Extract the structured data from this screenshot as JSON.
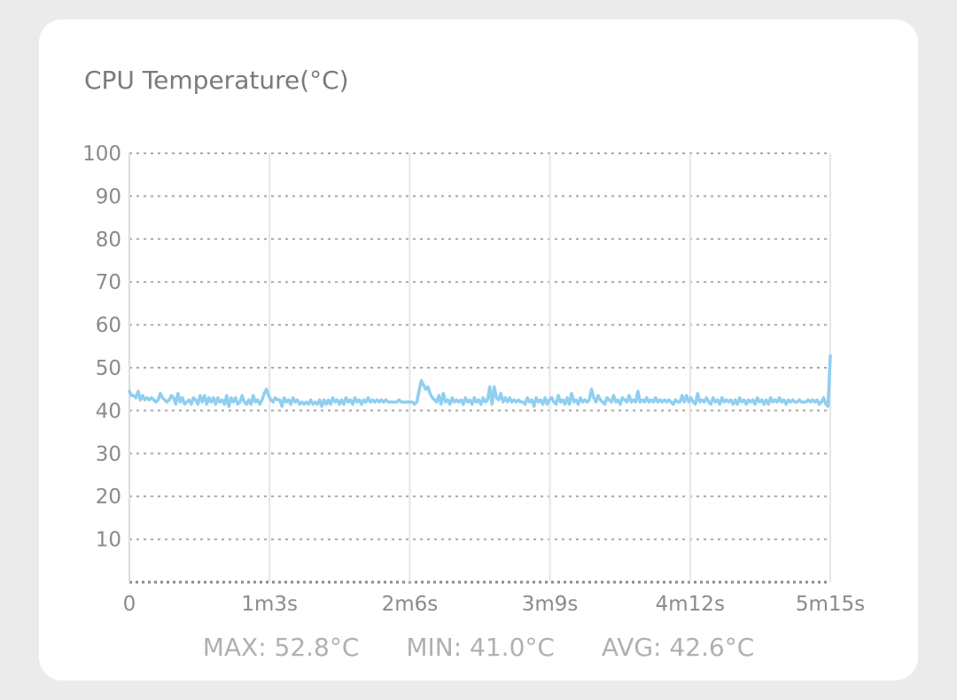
{
  "chart_data": {
    "type": "line",
    "title": "CPU Temperature(°C)",
    "xlabel": "",
    "ylabel": "",
    "ylim": [
      0,
      100
    ],
    "xlim": [
      0,
      315
    ],
    "y_ticks": [
      100,
      90,
      80,
      70,
      60,
      50,
      40,
      30,
      20,
      10
    ],
    "x_ticks": [
      {
        "value": 0,
        "label": "0"
      },
      {
        "value": 63,
        "label": "1m3s"
      },
      {
        "value": 126,
        "label": "2m6s"
      },
      {
        "value": 189,
        "label": "3m9s"
      },
      {
        "value": 252,
        "label": "4m12s"
      },
      {
        "value": 315,
        "label": "5m15s"
      }
    ],
    "grid": true,
    "color": "#8fcff0",
    "series": [
      {
        "values": [
          44.5,
          43.5,
          43.5,
          43,
          44.5,
          42.5,
          43.5,
          42.5,
          43,
          42.5,
          43,
          42.5,
          42,
          42.5,
          44,
          43,
          42.5,
          42,
          42.5,
          43.5,
          43,
          41.5,
          44,
          42,
          43,
          41.5,
          42,
          42.5,
          41.5,
          43,
          42.5,
          41.5,
          43.5,
          42,
          43.5,
          41.5,
          43,
          42,
          43,
          41.5,
          43,
          42,
          42.5,
          41.5,
          43.5,
          41,
          43,
          42,
          43,
          41.5,
          42,
          43.5,
          42,
          41.5,
          42.5,
          41.5,
          43.5,
          42,
          42.5,
          41.5,
          42.5,
          44,
          45,
          43.5,
          42.5,
          42,
          43,
          42.5,
          42.5,
          41,
          43,
          42,
          42.5,
          41.5,
          43,
          42,
          42.5,
          41.5,
          42,
          41.5,
          42,
          41.5,
          42.5,
          41.5,
          42,
          41.5,
          42.5,
          41,
          42.5,
          41.5,
          42.5,
          41.5,
          43,
          42,
          42.5,
          41.5,
          42.5,
          41.5,
          43,
          42,
          42.5,
          41.5,
          43,
          42,
          42.5,
          41.5,
          42.5,
          42,
          43,
          42,
          42.5,
          42,
          42.5,
          42,
          42.5,
          42,
          42.5,
          42,
          42,
          42,
          42,
          42,
          42.5,
          42,
          42,
          42,
          42,
          42,
          42,
          41.5,
          42,
          44.5,
          47,
          46,
          45,
          45.5,
          44,
          43,
          42.5,
          42,
          43.5,
          41.5,
          44,
          42,
          42.5,
          41.5,
          43,
          42,
          42.5,
          42,
          42.5,
          41.5,
          43,
          42,
          42.5,
          41.5,
          43,
          42,
          42.5,
          41.5,
          43,
          42,
          42.5,
          45.5,
          41.5,
          45.5,
          43,
          42.5,
          44,
          42,
          43,
          42,
          43,
          42,
          42.5,
          42,
          42.5,
          42,
          42,
          41.5,
          43,
          42,
          42.5,
          41,
          43,
          42,
          42.5,
          41.5,
          43,
          41.5,
          42.5,
          43,
          42,
          41.5,
          43.5,
          42,
          42.5,
          41.5,
          43,
          41.5,
          44,
          42,
          42.5,
          41.5,
          43,
          42,
          42.5,
          42,
          42.5,
          45,
          43,
          42,
          43.5,
          42.5,
          42,
          41.5,
          43,
          42.5,
          42,
          43.5,
          42,
          42.5,
          41.5,
          43,
          42.5,
          42,
          43.5,
          42,
          42.5,
          42,
          44.5,
          42,
          42.5,
          42,
          43,
          42,
          42.5,
          42,
          43,
          42,
          42.5,
          42,
          42.5,
          42,
          42.5,
          42,
          41.5,
          42.5,
          42,
          42,
          43.5,
          42,
          43.5,
          42,
          43,
          42,
          41.5,
          44,
          42,
          42.5,
          42,
          43,
          42,
          41.5,
          43,
          42,
          42.5,
          41.5,
          43,
          42,
          42.5,
          42,
          42.5,
          41.5,
          42.5,
          41.5,
          43,
          42,
          42.5,
          41.5,
          42.5,
          42,
          42.5,
          41.5,
          43,
          42,
          42.5,
          41.5,
          42.5,
          41.5,
          43,
          42,
          42.5,
          42,
          43,
          42,
          42.5,
          41.5,
          42.5,
          42,
          42.5,
          42,
          42,
          42.5,
          42,
          42,
          42,
          42.5,
          42,
          42.5,
          42,
          42.5,
          41.5,
          42,
          43,
          41.5,
          41,
          52.8
        ]
      }
    ]
  },
  "stats": {
    "max": "MAX: 52.8°C",
    "min": "MIN: 41.0°C",
    "avg": "AVG: 42.6°C"
  }
}
